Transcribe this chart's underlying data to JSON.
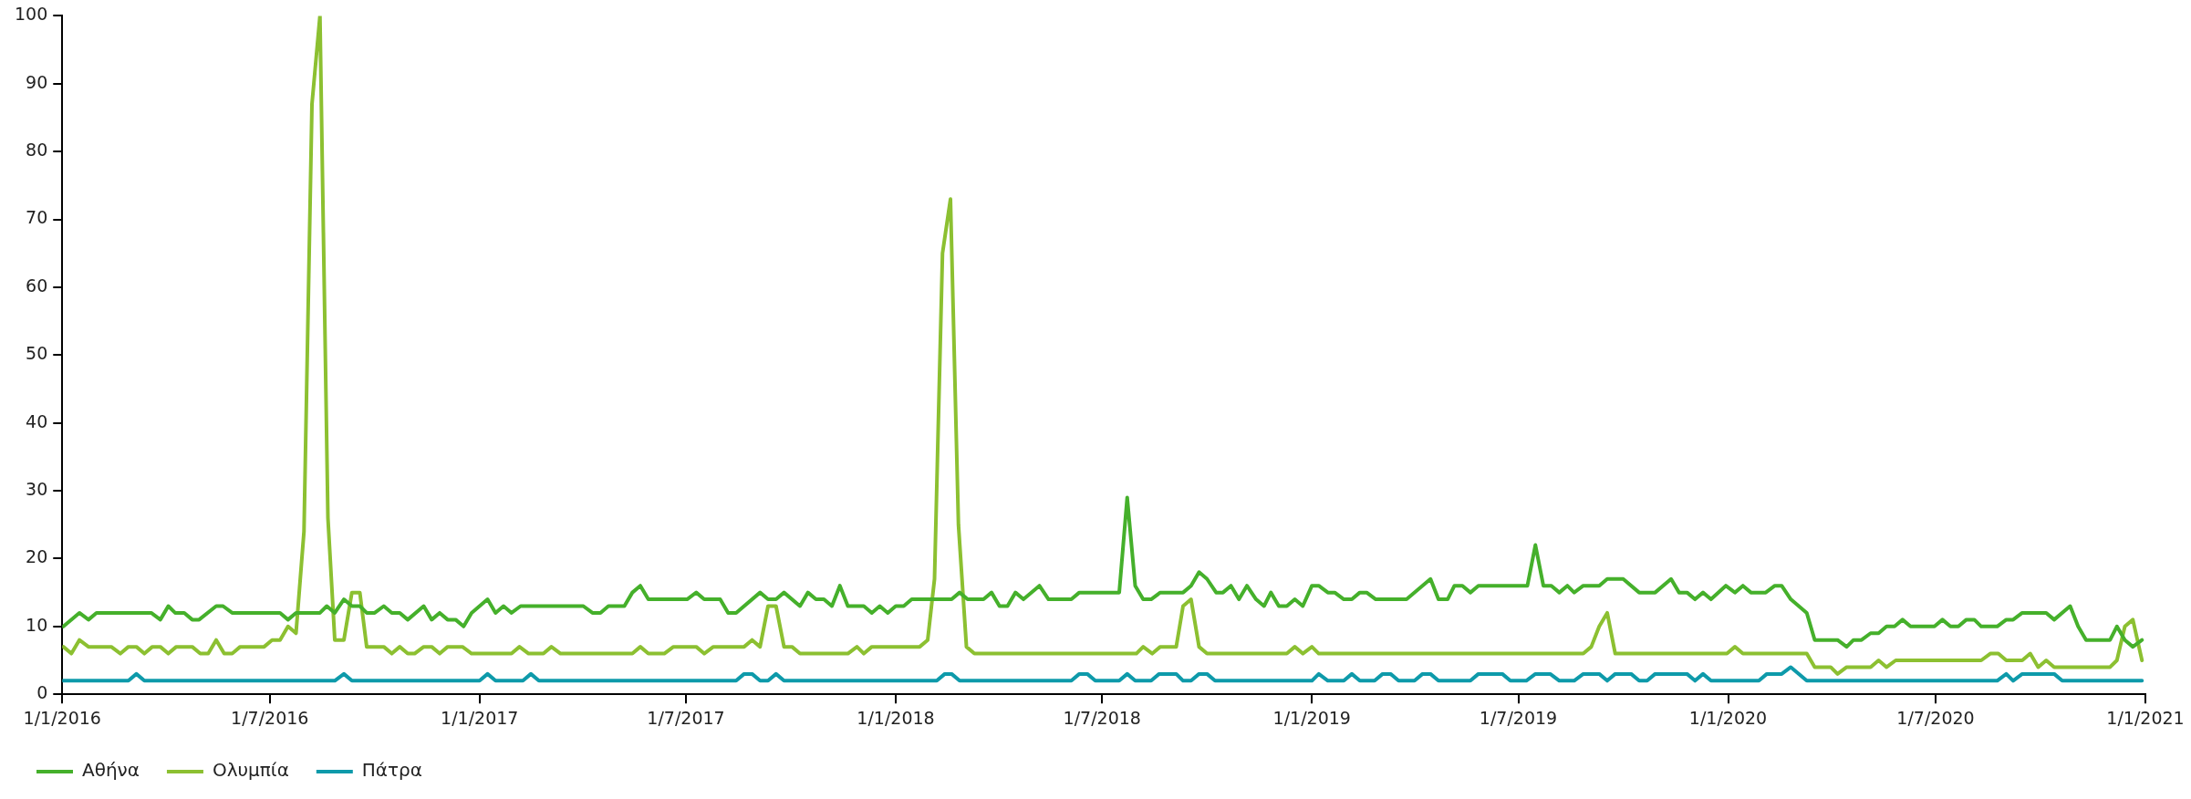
{
  "chart_data": {
    "type": "line",
    "legend": "bottom left",
    "grid": false,
    "marker": "none",
    "line_style": "solid",
    "xlim": [
      "2016-01-01",
      "2021-01-01"
    ],
    "xticks": [
      {
        "value": "2016-01-01",
        "label": "1/1/2016"
      },
      {
        "value": "2016-07-01",
        "label": "1/7/2016"
      },
      {
        "value": "2017-01-01",
        "label": "1/1/2017"
      },
      {
        "value": "2017-07-01",
        "label": "1/7/2017"
      },
      {
        "value": "2018-01-01",
        "label": "1/1/2018"
      },
      {
        "value": "2018-07-01",
        "label": "1/7/2018"
      },
      {
        "value": "2019-01-01",
        "label": "1/1/2019"
      },
      {
        "value": "2019-07-01",
        "label": "1/7/2019"
      },
      {
        "value": "2020-01-01",
        "label": "1/1/2020"
      },
      {
        "value": "2020-07-01",
        "label": "1/7/2020"
      },
      {
        "value": "2021-01-01",
        "label": "1/1/2021"
      }
    ],
    "ylim": [
      0,
      100
    ],
    "yticks": [
      0,
      10,
      20,
      30,
      40,
      50,
      60,
      70,
      80,
      90,
      100
    ],
    "series": [
      {
        "name": "Αθήνα",
        "color": "#45b02b",
        "x": [
          "2016-01-02",
          "2016-01-16",
          "2016-01-24",
          "2016-01-31",
          "2016-03-19",
          "2016-03-27",
          "2016-04-03",
          "2016-04-09",
          "2016-04-17",
          "2016-04-24",
          "2016-04-30",
          "2016-05-15",
          "2016-05-21",
          "2016-05-29",
          "2016-07-10",
          "2016-07-17",
          "2016-07-24",
          "2016-08-14",
          "2016-08-20",
          "2016-08-27",
          "2016-09-04",
          "2016-09-11",
          "2016-09-18",
          "2016-09-24",
          "2016-10-01",
          "2016-10-09",
          "2016-10-16",
          "2016-10-23",
          "2016-10-30",
          "2016-11-13",
          "2016-11-20",
          "2016-11-27",
          "2016-12-04",
          "2016-12-11",
          "2016-12-18",
          "2016-12-25",
          "2017-01-08",
          "2017-01-15",
          "2017-01-22",
          "2017-01-29",
          "2017-02-06",
          "2017-04-02",
          "2017-04-10",
          "2017-04-17",
          "2017-04-24",
          "2017-05-08",
          "2017-05-15",
          "2017-05-22",
          "2017-05-29",
          "2017-07-02",
          "2017-07-10",
          "2017-07-17",
          "2017-07-31",
          "2017-08-07",
          "2017-08-14",
          "2017-09-04",
          "2017-09-11",
          "2017-09-18",
          "2017-09-25",
          "2017-10-09",
          "2017-10-16",
          "2017-10-23",
          "2017-10-30",
          "2017-11-06",
          "2017-11-13",
          "2017-11-20",
          "2017-12-04",
          "2017-12-11",
          "2017-12-18",
          "2017-12-25",
          "2018-01-01",
          "2018-01-08",
          "2018-01-15",
          "2018-02-19",
          "2018-02-26",
          "2018-03-05",
          "2018-03-19",
          "2018-03-26",
          "2018-04-02",
          "2018-04-09",
          "2018-04-16",
          "2018-04-23",
          "2018-05-07",
          "2018-05-15",
          "2018-06-04",
          "2018-06-11",
          "2018-07-16",
          "2018-07-23",
          "2018-07-30",
          "2018-08-06",
          "2018-08-13",
          "2018-08-21",
          "2018-09-10",
          "2018-09-17",
          "2018-09-24",
          "2018-10-01",
          "2018-10-09",
          "2018-10-15",
          "2018-10-22",
          "2018-10-29",
          "2018-11-05",
          "2018-11-13",
          "2018-11-20",
          "2018-11-26",
          "2018-12-03",
          "2018-12-10",
          "2018-12-17",
          "2018-12-24",
          "2019-01-01",
          "2019-01-07",
          "2019-01-15",
          "2019-01-21",
          "2019-01-29",
          "2019-02-05",
          "2019-02-12",
          "2019-02-18",
          "2019-02-26",
          "2019-03-25",
          "2019-04-15",
          "2019-04-22",
          "2019-04-30",
          "2019-05-06",
          "2019-05-13",
          "2019-05-20",
          "2019-05-27",
          "2019-07-09",
          "2019-07-16",
          "2019-07-23",
          "2019-07-30",
          "2019-08-06",
          "2019-08-13",
          "2019-08-19",
          "2019-08-27",
          "2019-09-10",
          "2019-09-17",
          "2019-10-01",
          "2019-10-15",
          "2019-10-29",
          "2019-11-12",
          "2019-11-19",
          "2019-11-26",
          "2019-12-03",
          "2019-12-10",
          "2019-12-17",
          "2019-12-30",
          "2020-01-07",
          "2020-01-14",
          "2020-01-21",
          "2020-02-03",
          "2020-02-11",
          "2020-02-17",
          "2020-02-25",
          "2020-03-10",
          "2020-03-17",
          "2020-04-06",
          "2020-04-14",
          "2020-04-20",
          "2020-04-27",
          "2020-05-05",
          "2020-05-12",
          "2020-05-19",
          "2020-05-26",
          "2020-06-02",
          "2020-06-09",
          "2020-06-30",
          "2020-07-07",
          "2020-07-14",
          "2020-07-21",
          "2020-07-28",
          "2020-08-04",
          "2020-08-10",
          "2020-08-24",
          "2020-09-01",
          "2020-09-07",
          "2020-09-15",
          "2020-10-06",
          "2020-10-13",
          "2020-10-27",
          "2020-11-03",
          "2020-11-10",
          "2020-12-01",
          "2020-12-07",
          "2020-12-14",
          "2020-12-21",
          "2020-12-29"
        ],
        "values": [
          10,
          12,
          11,
          12,
          12,
          11,
          13,
          12,
          12,
          11,
          11,
          13,
          13,
          12,
          12,
          11,
          12,
          12,
          13,
          12,
          14,
          13,
          13,
          12,
          12,
          13,
          12,
          12,
          11,
          13,
          11,
          12,
          11,
          11,
          10,
          12,
          14,
          12,
          13,
          12,
          13,
          13,
          12,
          12,
          13,
          13,
          15,
          16,
          14,
          14,
          15,
          14,
          14,
          12,
          12,
          15,
          14,
          14,
          15,
          13,
          15,
          14,
          14,
          13,
          16,
          13,
          13,
          12,
          13,
          12,
          13,
          13,
          14,
          14,
          15,
          14,
          14,
          15,
          13,
          13,
          15,
          14,
          16,
          14,
          14,
          15,
          15,
          29,
          16,
          14,
          14,
          15,
          15,
          16,
          18,
          17,
          15,
          15,
          16,
          14,
          16,
          14,
          13,
          15,
          13,
          13,
          14,
          13,
          16,
          16,
          15,
          15,
          14,
          14,
          15,
          15,
          14,
          14,
          17,
          14,
          14,
          16,
          16,
          15,
          16,
          16,
          22,
          16,
          16,
          15,
          16,
          15,
          16,
          16,
          17,
          17,
          15,
          15,
          17,
          15,
          15,
          14,
          15,
          14,
          16,
          15,
          16,
          15,
          15,
          16,
          16,
          14,
          12,
          8,
          8,
          7,
          8,
          8,
          9,
          9,
          10,
          10,
          11,
          10,
          10,
          11,
          10,
          10,
          11,
          11,
          10,
          10,
          11,
          11,
          12,
          12,
          11,
          13,
          10,
          8,
          8,
          10,
          8,
          7,
          8
        ]
      },
      {
        "name": "Ολυμπία",
        "color": "#8cc031",
        "x": [
          "2016-01-02",
          "2016-01-09",
          "2016-01-16",
          "2016-01-24",
          "2016-02-13",
          "2016-02-21",
          "2016-02-28",
          "2016-03-06",
          "2016-03-13",
          "2016-03-20",
          "2016-03-27",
          "2016-04-03",
          "2016-04-10",
          "2016-04-24",
          "2016-05-01",
          "2016-05-08",
          "2016-05-15",
          "2016-05-22",
          "2016-05-29",
          "2016-06-05",
          "2016-06-26",
          "2016-07-03",
          "2016-07-10",
          "2016-07-17",
          "2016-07-24",
          "2016-07-31",
          "2016-08-07",
          "2016-08-14",
          "2016-08-21",
          "2016-08-27",
          "2016-09-04",
          "2016-09-11",
          "2016-09-18",
          "2016-09-24",
          "2016-10-09",
          "2016-10-16",
          "2016-10-23",
          "2016-10-30",
          "2016-11-05",
          "2016-11-13",
          "2016-11-20",
          "2016-11-27",
          "2016-12-04",
          "2016-12-17",
          "2016-12-25",
          "2017-01-29",
          "2017-02-05",
          "2017-02-13",
          "2017-02-26",
          "2017-03-05",
          "2017-03-13",
          "2017-05-15",
          "2017-05-22",
          "2017-05-29",
          "2017-06-12",
          "2017-06-20",
          "2017-07-10",
          "2017-07-17",
          "2017-07-25",
          "2017-08-21",
          "2017-08-28",
          "2017-09-04",
          "2017-09-11",
          "2017-09-18",
          "2017-09-25",
          "2017-10-02",
          "2017-10-09",
          "2017-11-20",
          "2017-11-28",
          "2017-12-04",
          "2017-12-11",
          "2018-01-22",
          "2018-01-29",
          "2018-02-04",
          "2018-02-11",
          "2018-02-18",
          "2018-02-25",
          "2018-03-04",
          "2018-03-11",
          "2018-07-31",
          "2018-08-06",
          "2018-08-14",
          "2018-08-21",
          "2018-09-04",
          "2018-09-10",
          "2018-09-17",
          "2018-09-24",
          "2018-10-01",
          "2018-12-10",
          "2018-12-17",
          "2018-12-24",
          "2019-01-01",
          "2019-01-07",
          "2019-08-27",
          "2019-09-03",
          "2019-09-10",
          "2019-09-17",
          "2019-09-24",
          "2019-12-31",
          "2020-01-07",
          "2020-01-14",
          "2020-03-10",
          "2020-03-17",
          "2020-03-31",
          "2020-04-06",
          "2020-04-14",
          "2020-05-05",
          "2020-05-12",
          "2020-05-19",
          "2020-05-27",
          "2020-08-10",
          "2020-08-18",
          "2020-08-25",
          "2020-09-01",
          "2020-09-15",
          "2020-09-22",
          "2020-09-29",
          "2020-10-06",
          "2020-10-13",
          "2020-12-01",
          "2020-12-07",
          "2020-12-14",
          "2020-12-21",
          "2020-12-29"
        ],
        "values": [
          7,
          6,
          8,
          7,
          7,
          6,
          7,
          7,
          6,
          7,
          7,
          6,
          7,
          7,
          6,
          6,
          8,
          6,
          6,
          7,
          7,
          8,
          8,
          10,
          9,
          24,
          87,
          100,
          26,
          8,
          8,
          15,
          15,
          7,
          7,
          6,
          7,
          6,
          6,
          7,
          7,
          6,
          7,
          7,
          6,
          6,
          7,
          6,
          6,
          7,
          6,
          6,
          7,
          6,
          6,
          7,
          7,
          6,
          7,
          7,
          8,
          7,
          13,
          13,
          7,
          7,
          6,
          6,
          7,
          6,
          7,
          7,
          8,
          17,
          65,
          73,
          25,
          7,
          6,
          6,
          7,
          6,
          7,
          7,
          13,
          14,
          7,
          6,
          6,
          7,
          6,
          7,
          6,
          6,
          7,
          10,
          12,
          6,
          6,
          7,
          6,
          6,
          4,
          4,
          3,
          4,
          4,
          5,
          4,
          5,
          5,
          6,
          6,
          5,
          5,
          6,
          4,
          5,
          4,
          4,
          5,
          10,
          11,
          5
        ]
      },
      {
        "name": "Πάτρα",
        "color": "#0e9aaa",
        "x": [
          "2016-01-02",
          "2016-02-28",
          "2016-03-06",
          "2016-03-13",
          "2016-08-27",
          "2016-09-04",
          "2016-09-11",
          "2017-01-01",
          "2017-01-08",
          "2017-01-15",
          "2017-02-08",
          "2017-02-15",
          "2017-02-22",
          "2017-08-14",
          "2017-08-21",
          "2017-08-28",
          "2017-09-04",
          "2017-09-11",
          "2017-09-18",
          "2017-09-25",
          "2018-02-06",
          "2018-02-13",
          "2018-02-19",
          "2018-02-26",
          "2018-06-04",
          "2018-06-11",
          "2018-06-18",
          "2018-06-25",
          "2018-07-16",
          "2018-07-23",
          "2018-07-30",
          "2018-08-13",
          "2018-08-20",
          "2018-09-04",
          "2018-09-10",
          "2018-09-17",
          "2018-09-24",
          "2018-10-01",
          "2018-10-08",
          "2019-01-01",
          "2019-01-07",
          "2019-01-15",
          "2019-01-29",
          "2019-02-05",
          "2019-02-12",
          "2019-02-25",
          "2019-03-04",
          "2019-03-11",
          "2019-03-18",
          "2019-04-01",
          "2019-04-08",
          "2019-04-15",
          "2019-04-22",
          "2019-05-20",
          "2019-05-27",
          "2019-06-17",
          "2019-06-24",
          "2019-07-08",
          "2019-07-16",
          "2019-07-29",
          "2019-08-06",
          "2019-08-19",
          "2019-08-27",
          "2019-09-10",
          "2019-09-17",
          "2019-09-24",
          "2019-10-08",
          "2019-10-15",
          "2019-10-22",
          "2019-10-29",
          "2019-11-26",
          "2019-12-03",
          "2019-12-10",
          "2019-12-17",
          "2020-01-28",
          "2020-02-04",
          "2020-02-17",
          "2020-02-25",
          "2020-03-10",
          "2020-08-24",
          "2020-09-01",
          "2020-09-07",
          "2020-09-15",
          "2020-10-13",
          "2020-10-20",
          "2020-12-29"
        ],
        "values": [
          2,
          2,
          3,
          2,
          2,
          3,
          2,
          2,
          3,
          2,
          2,
          3,
          2,
          2,
          3,
          3,
          2,
          2,
          3,
          2,
          2,
          3,
          3,
          2,
          2,
          3,
          3,
          2,
          2,
          3,
          2,
          2,
          3,
          3,
          2,
          2,
          3,
          3,
          2,
          2,
          3,
          2,
          2,
          3,
          2,
          2,
          3,
          3,
          2,
          2,
          3,
          3,
          2,
          2,
          3,
          3,
          2,
          2,
          3,
          3,
          2,
          2,
          3,
          3,
          2,
          3,
          3,
          2,
          2,
          3,
          3,
          2,
          3,
          2,
          2,
          3,
          3,
          4,
          2,
          2,
          3,
          2,
          3,
          3,
          2,
          2
        ]
      }
    ]
  }
}
